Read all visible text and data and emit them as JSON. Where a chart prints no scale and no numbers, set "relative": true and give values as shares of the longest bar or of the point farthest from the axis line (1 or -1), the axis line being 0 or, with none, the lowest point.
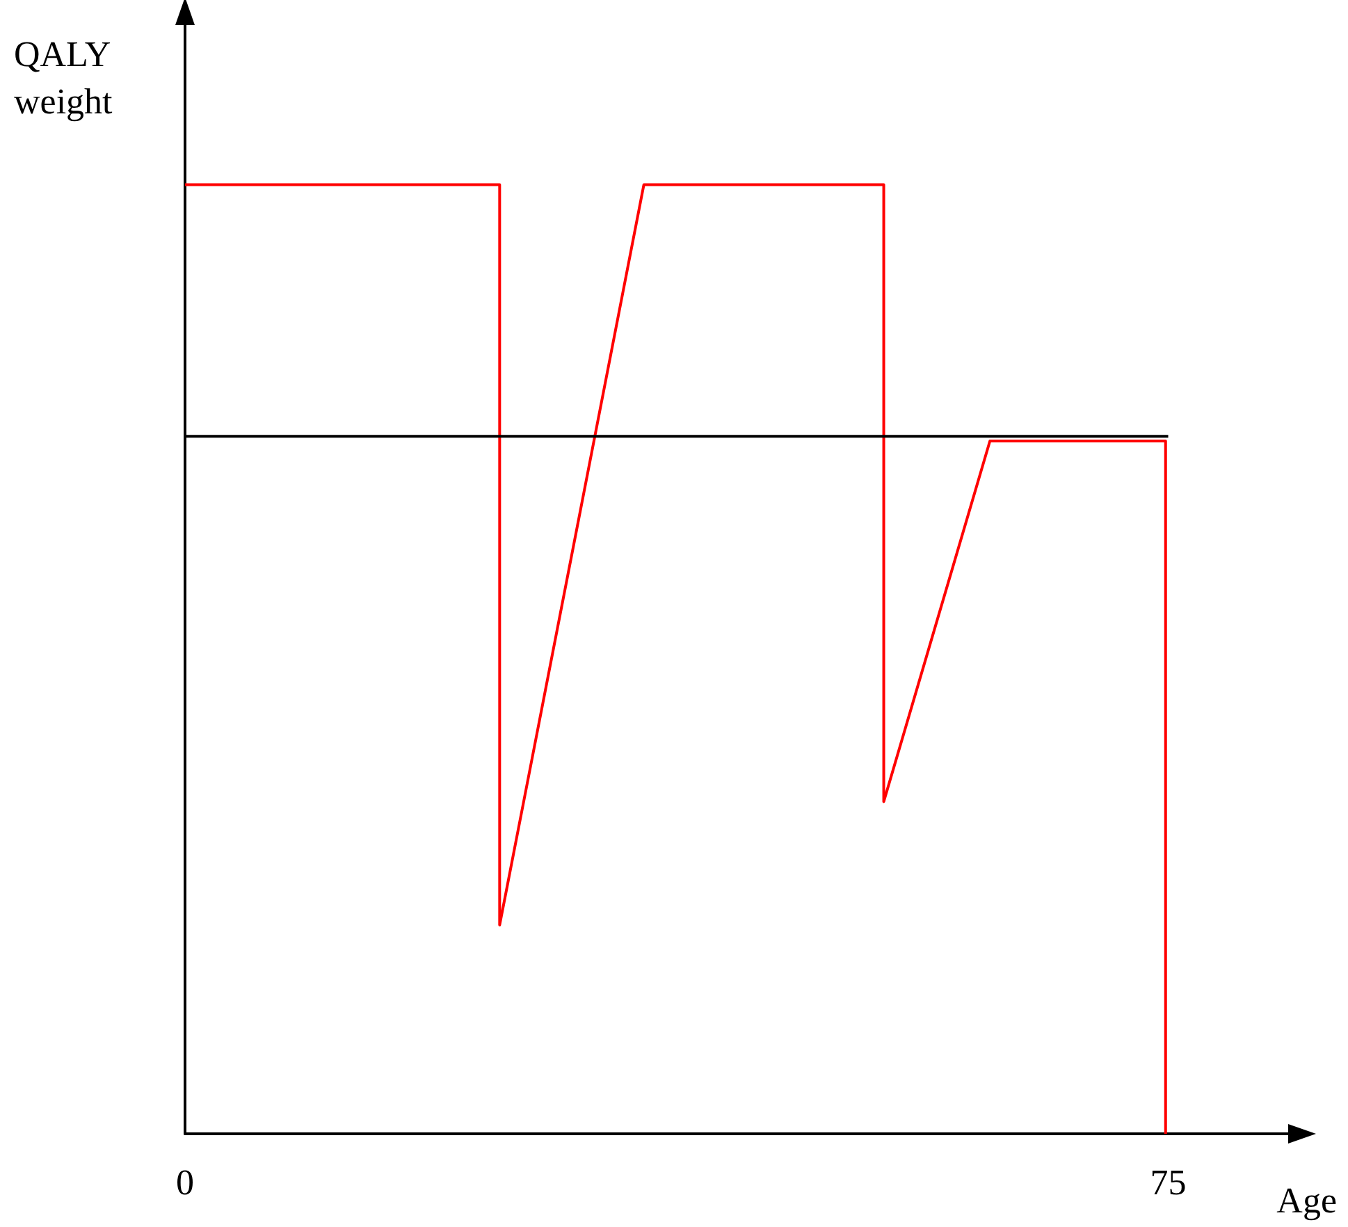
{
  "chart_data": {
    "type": "line",
    "relative": true,
    "xlabel": "Age",
    "ylabel": "QALY weight",
    "xlim": [
      0,
      85
    ],
    "xticks": [
      0,
      75
    ],
    "grid": false,
    "marker": "none",
    "series": [
      {
        "color": "#ff0000",
        "x": [
          0,
          24,
          24,
          35,
          53.3,
          53.3,
          61.4,
          74.8,
          74.8
        ],
        "values": [
          1,
          1,
          0.22,
          1,
          1,
          0.35,
          0.73,
          0.73,
          0
        ]
      },
      {
        "color": "#000000",
        "x": [
          0,
          75
        ],
        "values": [
          0.735,
          0.735
        ]
      }
    ]
  }
}
